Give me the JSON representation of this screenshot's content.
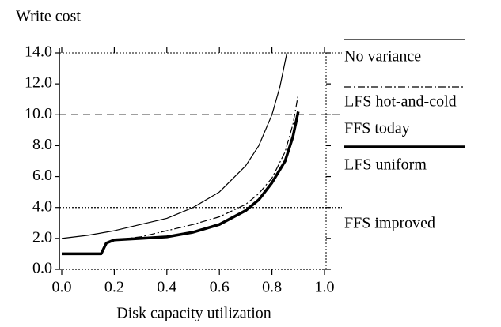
{
  "chart_data": {
    "type": "line",
    "title": "Write cost",
    "xlabel": "Disk capacity utilization",
    "xlim": [
      0,
      1
    ],
    "ylim": [
      0,
      14
    ],
    "xticks": [
      {
        "value": 0,
        "label": "0.0"
      },
      {
        "value": 0.2,
        "label": "0.2"
      },
      {
        "value": 0.4,
        "label": "0.4"
      },
      {
        "value": 0.6,
        "label": "0.6"
      },
      {
        "value": 0.8,
        "label": "0.8"
      },
      {
        "value": 1,
        "label": "1.0"
      }
    ],
    "yticks": [
      {
        "value": 0,
        "label": "0.0"
      },
      {
        "value": 2,
        "label": "2.0"
      },
      {
        "value": 4,
        "label": "4.0"
      },
      {
        "value": 6,
        "label": "6.0"
      },
      {
        "value": 8,
        "label": "8.0"
      },
      {
        "value": 10,
        "label": "10.0"
      },
      {
        "value": 12,
        "label": "12.0"
      },
      {
        "value": 14,
        "label": "14.0"
      }
    ],
    "series": [
      {
        "name": "No variance",
        "color": "#000000",
        "style": "solid",
        "x": [
          0,
          0.1,
          0.2,
          0.3,
          0.4,
          0.5,
          0.6,
          0.7,
          0.75,
          0.8,
          0.83,
          0.857
        ],
        "values": [
          2,
          2.2,
          2.5,
          2.9,
          3.3,
          4,
          5,
          6.7,
          8,
          10,
          11.8,
          14
        ]
      },
      {
        "name": "LFS hot-and-cold",
        "color": "#000000",
        "style": "dashdot",
        "x": [
          0,
          0.15,
          0.17,
          0.2,
          0.3,
          0.4,
          0.5,
          0.6,
          0.7,
          0.75,
          0.8,
          0.85,
          0.88,
          0.9
        ],
        "values": [
          1,
          1,
          1.7,
          1.9,
          2.1,
          2.5,
          2.9,
          3.4,
          4.2,
          4.9,
          5.9,
          7.6,
          9.4,
          11.3
        ]
      },
      {
        "name": "FFS today",
        "color": "#000000",
        "style": "dashed",
        "value": 10
      },
      {
        "name": "LFS uniform",
        "color": "#000000",
        "style": "thick",
        "x": [
          0,
          0.15,
          0.17,
          0.2,
          0.3,
          0.4,
          0.5,
          0.6,
          0.7,
          0.75,
          0.8,
          0.85,
          0.88,
          0.9
        ],
        "values": [
          1,
          1,
          1.7,
          1.9,
          2.0,
          2.1,
          2.4,
          2.9,
          3.8,
          4.5,
          5.6,
          7.0,
          8.6,
          10.2
        ]
      },
      {
        "name": "FFS improved",
        "color": "#000000",
        "style": "dotted",
        "value": 4
      }
    ]
  }
}
